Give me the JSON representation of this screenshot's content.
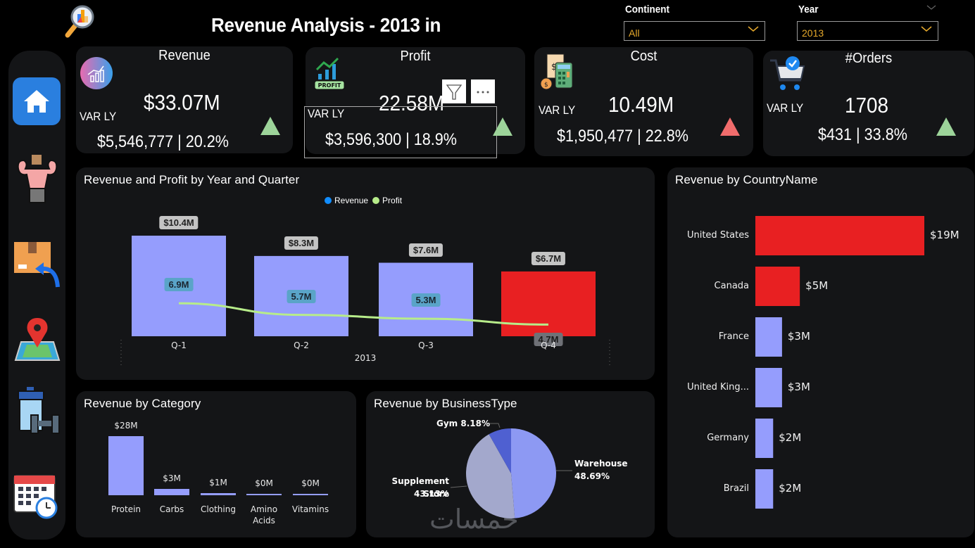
{
  "header": {
    "title": "Revenue Analysis - 2013 in",
    "logo_icon": "magnifier-chart-icon"
  },
  "slicers": {
    "continent": {
      "label": "Continent",
      "value": "All"
    },
    "year": {
      "label": "Year",
      "value": "2013"
    }
  },
  "sidebar": {
    "items": [
      {
        "name": "home",
        "icon": "home-icon",
        "active": true
      },
      {
        "name": "customers",
        "icon": "bodybuilder-icon"
      },
      {
        "name": "returns",
        "icon": "package-return-icon"
      },
      {
        "name": "map",
        "icon": "map-pin-icon"
      },
      {
        "name": "products",
        "icon": "supplement-dumbbell-icon"
      },
      {
        "name": "calendar",
        "icon": "calendar-clock-icon"
      }
    ]
  },
  "kpis": {
    "revenue": {
      "title": "Revenue",
      "value": "$33.07M",
      "var_label": "VAR LY",
      "var": "$5,546,777 | 20.2%",
      "trend": "up",
      "color": "#9dd49a"
    },
    "profit": {
      "title": "Profit",
      "value": "22.58M",
      "var_label": "VAR LY",
      "var": "$3,596,300 | 18.9%",
      "trend": "up",
      "color": "#9dd49a"
    },
    "cost": {
      "title": "Cost",
      "value": "10.49M",
      "var_label": "VAR LY",
      "var": "$1,950,477 | 22.8%",
      "trend": "up",
      "color": "#f16c6c"
    },
    "orders": {
      "title": "#Orders",
      "value": "1708",
      "var_label": "VAR LY",
      "var": "$431 | 33.8%",
      "trend": "up",
      "color": "#9dd49a"
    }
  },
  "visual_header": {
    "filter_icon": "filter-icon",
    "more_icon": "more-options-icon"
  },
  "watermark": "خمسات",
  "chart_data": [
    {
      "id": "quarter",
      "type": "bar",
      "title": "Revenue and Profit by Year and Quarter",
      "legend": [
        {
          "name": "Revenue",
          "color": "#118dff"
        },
        {
          "name": "Profit",
          "color": "#b7ec8a"
        }
      ],
      "legend_position": "top-center",
      "categories": [
        "Q-1",
        "Q-2",
        "Q-3",
        "Q-4"
      ],
      "xgroup": "2013",
      "series": [
        {
          "name": "Revenue",
          "kind": "bar",
          "values": [
            10.4,
            8.3,
            7.6,
            6.7
          ],
          "labels": [
            "$10.4M",
            "$8.3M",
            "$7.6M",
            "$6.7M"
          ],
          "colors": [
            "#959dfd",
            "#959dfd",
            "#959dfd",
            "#e82022"
          ]
        },
        {
          "name": "Profit",
          "kind": "line",
          "values": [
            6.9,
            5.7,
            5.3,
            4.7
          ],
          "labels": [
            "6.9M",
            "5.7M",
            "5.3M",
            "4.7M"
          ],
          "color": "#b7ec8a"
        }
      ],
      "ylim": [
        0,
        11
      ]
    },
    {
      "id": "country",
      "type": "bar",
      "orientation": "horizontal",
      "title": "Revenue by CountryName",
      "categories": [
        "United States",
        "Canada",
        "France",
        "United King...",
        "Germany",
        "Brazil"
      ],
      "values": [
        19,
        5,
        3,
        3,
        2,
        2
      ],
      "labels": [
        "$19M",
        "$5M",
        "$3M",
        "$3M",
        "$2M",
        "$2M"
      ],
      "colors": [
        "#e82022",
        "#e82022",
        "#959dfd",
        "#959dfd",
        "#959dfd",
        "#959dfd"
      ],
      "xlim": [
        0,
        19
      ]
    },
    {
      "id": "category",
      "type": "bar",
      "title": "Revenue by Category",
      "categories": [
        "Protein",
        "Carbs",
        "Clothing",
        "Amino Acids",
        "Vitamins"
      ],
      "values": [
        28,
        3,
        1,
        0.2,
        0.2
      ],
      "labels": [
        "$28M",
        "$3M",
        "$1M",
        "$0M",
        "$0M"
      ],
      "color": "#959dfd",
      "ylim": [
        0,
        28
      ]
    },
    {
      "id": "business",
      "type": "pie",
      "title": "Revenue by BusinessType",
      "slices": [
        {
          "name": "Warehouse",
          "value": 48.69,
          "label": "48.69%",
          "color": "#8d99f3"
        },
        {
          "name": "Supplement Store",
          "value": 43.13,
          "label": "43.13%",
          "color": "#a3a8cc"
        },
        {
          "name": "Gym",
          "value": 8.18,
          "label": "8.18%",
          "color": "#4f60d1"
        }
      ]
    }
  ]
}
